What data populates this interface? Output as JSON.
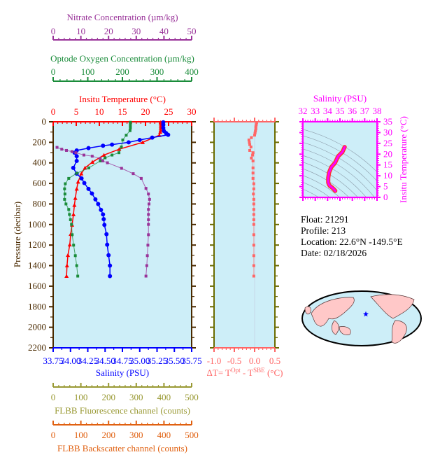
{
  "colors": {
    "plot_bg": "#cdeef8",
    "pressure_axis": "#4a2a00",
    "temperature": "#ff0000",
    "salinity": "#0000ff",
    "oxygen": "#1a8c3a",
    "nitrate": "#993399",
    "fluorescence": "#999933",
    "backscatter": "#e06010",
    "delta_t": "#ff6666",
    "delta_t_frame": "#6b6b00",
    "ts": "#ff00ff"
  },
  "info": {
    "float": "Float:  21291",
    "profile": "Profile:  213",
    "location": "Location:  22.6°N  -149.5°E",
    "date": "Date:  02/18/2026"
  },
  "map": {
    "marker_icon": "star-icon",
    "float_lat": 22.6,
    "float_lon": -149.5
  },
  "chart_data": [
    {
      "type": "line",
      "title": "Profile",
      "ylabel": "Pressure (decibar)",
      "ylim": [
        2200,
        0
      ],
      "y_ticks": [
        "0",
        "200",
        "400",
        "600",
        "800",
        "1000",
        "1200",
        "1400",
        "1600",
        "1800",
        "2000",
        "2200"
      ],
      "axes": {
        "nitrate": {
          "label": "Nitrate Concentration (µm/kg)",
          "range": [
            0,
            50
          ],
          "ticks": [
            "0",
            "10",
            "20",
            "30",
            "40",
            "50"
          ]
        },
        "oxygen": {
          "label": "Optode Oxygen Concentration (µm/kg)",
          "range": [
            0,
            400
          ],
          "ticks": [
            "0",
            "100",
            "200",
            "300",
            "400"
          ]
        },
        "temperature": {
          "label": "Insitu Temperature (°C)",
          "range": [
            0,
            30
          ],
          "ticks": [
            "0",
            "5",
            "10",
            "15",
            "20",
            "25",
            "30"
          ]
        },
        "salinity": {
          "label": "Salinity (PSU)",
          "range": [
            33.75,
            35.75
          ],
          "ticks": [
            "33.75",
            "34.00",
            "34.25",
            "34.50",
            "34.75",
            "35.00",
            "35.25",
            "35.50",
            "35.75"
          ]
        },
        "fluorescence": {
          "label": "FLBB Fluorescence channel (counts)",
          "range": [
            0,
            500
          ],
          "ticks": [
            "0",
            "100",
            "200",
            "300",
            "400",
            "500"
          ]
        },
        "backscatter": {
          "label": "FLBB Backscatter channel (counts)",
          "range": [
            0,
            500
          ],
          "ticks": [
            "0",
            "100",
            "200",
            "300",
            "400",
            "500"
          ]
        }
      },
      "series": [
        {
          "key": "temperature",
          "marker": "triangle",
          "pressure": [
            5,
            20,
            40,
            60,
            80,
            100,
            131,
            200,
            267,
            324,
            392,
            449,
            505,
            585,
            653,
            743,
            811,
            902,
            1004,
            1094,
            1196,
            1298,
            1400,
            1502
          ],
          "values": [
            23.3,
            23.3,
            23.3,
            23.3,
            23.3,
            23.2,
            23.0,
            19.4,
            14.3,
            11.0,
            8.5,
            6.9,
            6.1,
            5.4,
            5.1,
            4.8,
            4.6,
            4.4,
            4.1,
            3.8,
            3.6,
            3.2,
            3.0,
            2.9
          ]
        },
        {
          "key": "salinity",
          "marker": "circle",
          "pressure": [
            5,
            30,
            60,
            90,
            110,
            127,
            154,
            177,
            200,
            222,
            233,
            256,
            279,
            301,
            335,
            381,
            449,
            505,
            551,
            596,
            653,
            698,
            755,
            800,
            857,
            902,
            948,
            1004,
            1094,
            1196,
            1298,
            1400,
            1502
          ],
          "values": [
            35.34,
            35.34,
            35.34,
            35.35,
            35.38,
            35.41,
            35.18,
            35.0,
            34.84,
            34.6,
            34.47,
            34.26,
            34.09,
            34.06,
            34.09,
            34.09,
            34.04,
            34.09,
            34.16,
            34.2,
            34.26,
            34.31,
            34.36,
            34.4,
            34.44,
            34.47,
            34.48,
            34.49,
            34.52,
            34.53,
            34.55,
            34.57,
            34.57
          ]
        },
        {
          "key": "oxygen",
          "marker": "square",
          "pressure": [
            5,
            20,
            40,
            60,
            86,
            131,
            177,
            245,
            301,
            324,
            351,
            381,
            449,
            501,
            551,
            603,
            653,
            703,
            755,
            800,
            853,
            902,
            953,
            999,
            1099,
            1201,
            1303,
            1400,
            1502
          ],
          "values": [
            223,
            223,
            223,
            223,
            222,
            211,
            201,
            197,
            190,
            170,
            150,
            136,
            103,
            68,
            45,
            35,
            33,
            34,
            33,
            37,
            45,
            47,
            50,
            53,
            55,
            59,
            64,
            68,
            71
          ]
        },
        {
          "key": "nitrate",
          "marker": "square",
          "pressure": [
            249,
            267,
            279,
            290,
            301,
            324,
            335,
            358,
            381,
            399,
            453,
            505,
            551,
            648,
            703,
            755,
            800,
            853,
            902,
            953,
            999,
            1099,
            1201,
            1303,
            1400,
            1502
          ],
          "values": [
            1.4,
            3.1,
            4.8,
            6.8,
            8.2,
            11.1,
            14.1,
            17.0,
            17.9,
            19.6,
            24.7,
            28.9,
            31.8,
            33.5,
            34.4,
            34.8,
            34.6,
            34.4,
            34.4,
            34.4,
            34.4,
            34.4,
            34.2,
            34.0,
            33.8,
            33.5
          ]
        }
      ]
    },
    {
      "type": "scatter",
      "xlabel": "ΔT= T",
      "xlabel_sup1": "Opt",
      "xlabel_mid": " - T",
      "xlabel_sup2": "SBE",
      "xlabel_end": " (°C)",
      "xlim": [
        -1.0,
        0.5
      ],
      "x_ticks": [
        "-1.0",
        "-0.5",
        "0.0",
        "0.5"
      ],
      "ylim": [
        2200,
        0
      ],
      "pressure": [
        10,
        30,
        50,
        70,
        90,
        110,
        130,
        154,
        177,
        200,
        222,
        245,
        279,
        301,
        324,
        353,
        381,
        449,
        499,
        551,
        603,
        653,
        703,
        755,
        800,
        853,
        902,
        953,
        999,
        1099,
        1201,
        1303,
        1400,
        1502
      ],
      "values": [
        0.05,
        0.04,
        0.03,
        0.03,
        0.02,
        0.01,
        0.0,
        -0.08,
        -0.14,
        -0.13,
        -0.12,
        -0.09,
        -0.12,
        -0.04,
        -0.05,
        -0.08,
        -0.04,
        -0.04,
        -0.04,
        -0.04,
        -0.02,
        -0.02,
        -0.03,
        -0.02,
        -0.02,
        -0.02,
        -0.02,
        -0.02,
        -0.02,
        -0.02,
        -0.02,
        -0.02,
        -0.02,
        -0.02
      ]
    },
    {
      "type": "line",
      "title": "Salinity (PSU)",
      "ylabel": "Insitu Temperature (°C)",
      "xlim": [
        32,
        38
      ],
      "ylim": [
        0,
        35
      ],
      "x_ticks": [
        "32",
        "33",
        "34",
        "35",
        "36",
        "37",
        "38"
      ],
      "y_ticks": [
        "0",
        "5",
        "10",
        "15",
        "20",
        "25",
        "30",
        "35"
      ],
      "salinity": [
        35.38,
        35.2,
        34.85,
        34.6,
        34.3,
        34.12,
        34.05,
        34.05,
        34.1,
        34.2,
        34.35,
        34.5,
        34.62
      ],
      "temperature": [
        23.3,
        21.0,
        19.0,
        16.0,
        14.0,
        11.5,
        9.0,
        6.9,
        6.0,
        5.2,
        4.6,
        3.8,
        3.0
      ]
    }
  ]
}
